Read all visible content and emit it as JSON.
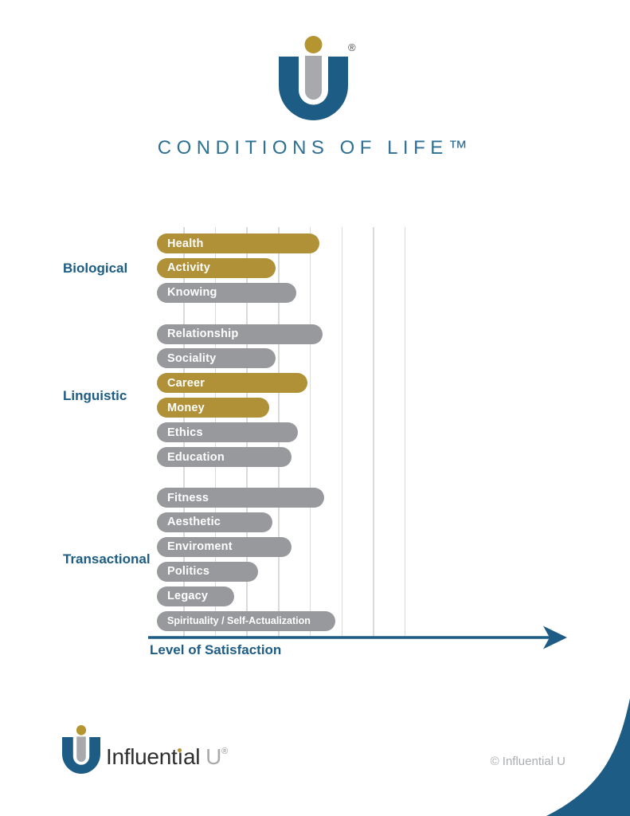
{
  "header": {
    "title": "CONDITIONS OF LIFE™",
    "registered_mark": "®"
  },
  "chart_data": {
    "type": "bar",
    "orientation": "horizontal",
    "title": "CONDITIONS OF LIFE™",
    "xlabel": "Level of Satisfaction",
    "ylabel": "",
    "x_axis": {
      "label": "Level of Satisfaction",
      "tick_labels_visible": false,
      "gridline_count": 8,
      "arrow": true
    },
    "value_scale": "relative units: 1 = one gridline interval, bars start at 0 (no numeric labels shown in chart)",
    "bar_colors": {
      "gold": "#b09138",
      "gray": "#97999c"
    },
    "groups": [
      {
        "label": "Biological",
        "items": [
          {
            "label": "Health",
            "color": "gold",
            "value": 5.15
          },
          {
            "label": "Activity",
            "color": "gold",
            "value": 3.75
          },
          {
            "label": "Knowing",
            "color": "gray",
            "value": 4.4
          }
        ]
      },
      {
        "label": "Linguistic",
        "items": [
          {
            "label": "Relationship",
            "color": "gray",
            "value": 5.25
          },
          {
            "label": "Sociality",
            "color": "gray",
            "value": 3.75
          },
          {
            "label": "Career",
            "color": "gold",
            "value": 4.75
          },
          {
            "label": "Money",
            "color": "gold",
            "value": 3.55
          },
          {
            "label": "Ethics",
            "color": "gray",
            "value": 4.45
          },
          {
            "label": "Education",
            "color": "gray",
            "value": 4.25
          }
        ]
      },
      {
        "label": "Transactional",
        "items": [
          {
            "label": "Fitness",
            "color": "gray",
            "value": 5.3
          },
          {
            "label": "Aesthetic",
            "color": "gray",
            "value": 3.65
          },
          {
            "label": "Enviroment",
            "color": "gray",
            "value": 4.25
          },
          {
            "label": "Politics",
            "color": "gray",
            "value": 3.2
          },
          {
            "label": "Legacy",
            "color": "gray",
            "value": 2.45
          },
          {
            "label": "Spirituality / Self-Actualization",
            "color": "gray",
            "value": 5.65
          }
        ]
      }
    ]
  },
  "footer": {
    "wordmark": {
      "full": "Influential U",
      "part1": "Influent",
      "dotless_i": "ı",
      "part2": "al",
      "u_letter": "U",
      "registered_mark": "®"
    },
    "copyright": "© Influential U"
  },
  "colors": {
    "brand_blue": "#1d5c84",
    "title_blue": "#2e6f94",
    "gold": "#b09138",
    "gold_dot": "#b5952f",
    "bar_gray": "#97999c",
    "stem_gray": "#a7a9ac",
    "gridline_gray": "#dadada",
    "wordmark_dark": "#2e2e2e",
    "copyright_gray": "#aaadb1"
  }
}
